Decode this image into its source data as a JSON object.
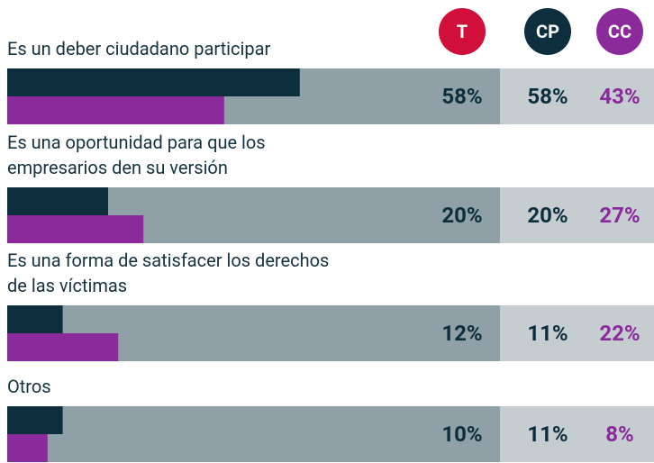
{
  "chart_data": {
    "type": "bar",
    "categories": [
      "Es un deber ciudadano participar",
      "Es una oportunidad para que los empresarios den su versión",
      "Es una forma de satisfacer los derechos de las víctimas",
      "Otros"
    ],
    "series": [
      {
        "name": "T",
        "color": "#d0103a",
        "values": [
          58,
          20,
          12,
          10
        ],
        "value_labels": [
          "58%",
          "20%",
          "12%",
          "10%"
        ]
      },
      {
        "name": "CP",
        "color": "#0d2f3d",
        "values": [
          58,
          20,
          11,
          11
        ],
        "value_labels": [
          "58%",
          "20%",
          "11%",
          "11%"
        ]
      },
      {
        "name": "CC",
        "color": "#8a2a9b",
        "values": [
          43,
          27,
          22,
          8
        ],
        "value_labels": [
          "43%",
          "27%",
          "22%",
          "8%"
        ]
      }
    ],
    "xlim": [
      0,
      100
    ]
  }
}
